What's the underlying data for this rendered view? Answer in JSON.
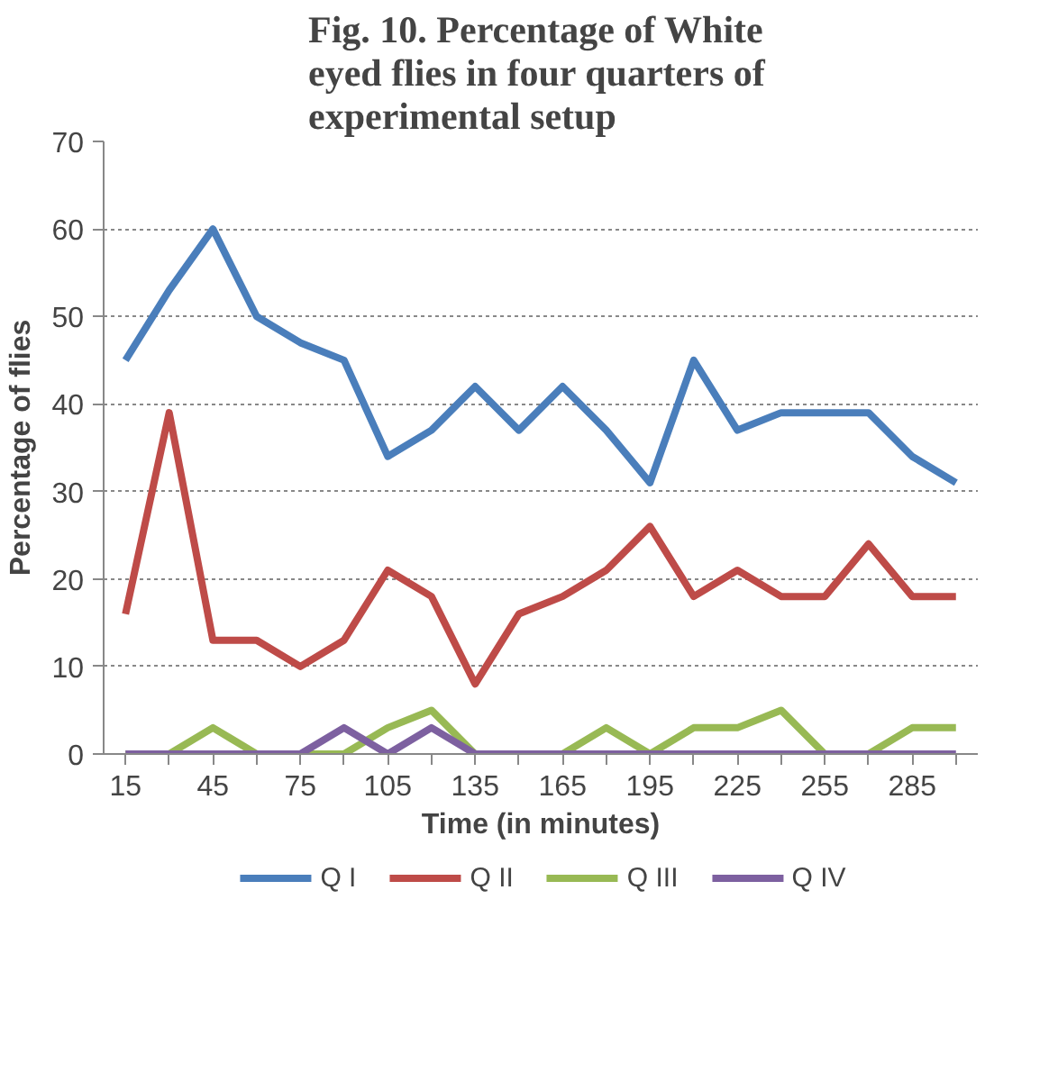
{
  "chart_data": {
    "type": "line",
    "title": "Fig. 10. Percentage of  White eyed flies in four quarters of experimental setup",
    "xlabel": "Time (in minutes)",
    "ylabel": "Percentage of flies",
    "categories": [
      "15",
      null,
      "45",
      null,
      "75",
      null,
      "105",
      null,
      "135",
      null,
      "165",
      null,
      "195",
      null,
      "225",
      null,
      "255",
      null,
      "285",
      null
    ],
    "series": [
      {
        "name": "Q I",
        "color": "#4a7ebb",
        "values": [
          45,
          53,
          60,
          50,
          47,
          45,
          34,
          37,
          42,
          37,
          42,
          37,
          31,
          45,
          37,
          39,
          39,
          39,
          34,
          31
        ]
      },
      {
        "name": "Q II",
        "color": "#be4b48",
        "values": [
          16,
          39,
          13,
          13,
          10,
          13,
          21,
          18,
          8,
          16,
          18,
          21,
          26,
          18,
          21,
          18,
          18,
          24,
          18,
          18
        ]
      },
      {
        "name": "Q III",
        "color": "#98b954",
        "values": [
          0,
          0,
          3,
          0,
          0,
          0,
          3,
          5,
          0,
          0,
          0,
          3,
          0,
          3,
          3,
          5,
          0,
          0,
          3,
          3
        ]
      },
      {
        "name": "Q IV",
        "color": "#7d60a0",
        "values": [
          0,
          0,
          0,
          0,
          0,
          3,
          0,
          3,
          0,
          0,
          0,
          0,
          0,
          0,
          0,
          0,
          0,
          0,
          0,
          0
        ]
      }
    ],
    "ylim": [
      0,
      70
    ],
    "yticks": [
      0,
      10,
      20,
      30,
      40,
      50,
      60,
      70
    ],
    "grid": "y",
    "legend": "bottom",
    "marker": "none",
    "line_style": "solid"
  }
}
